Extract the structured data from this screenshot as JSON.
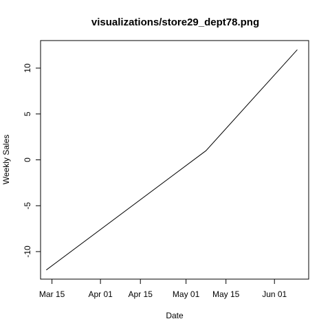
{
  "chart_data": {
    "type": "line",
    "title": "visualizations/store29_dept78.png",
    "xlabel": "Date",
    "ylabel": "Weekly Sales",
    "x_ticks": [
      {
        "date": "2012-03-15",
        "label": "Mar 15"
      },
      {
        "date": "2012-04-01",
        "label": "Apr 01"
      },
      {
        "date": "2012-04-15",
        "label": "Apr 15"
      },
      {
        "date": "2012-05-01",
        "label": "May 01"
      },
      {
        "date": "2012-05-15",
        "label": "May 15"
      },
      {
        "date": "2012-06-01",
        "label": "Jun 01"
      }
    ],
    "y_ticks": [
      -10,
      -5,
      0,
      5,
      10
    ],
    "xlim": [
      "2012-03-11",
      "2012-06-13"
    ],
    "ylim": [
      -13,
      13
    ],
    "grid": false,
    "series": [
      {
        "color": "#000000",
        "points": [
          {
            "x": "2012-03-13",
            "y": -12.0
          },
          {
            "x": "2012-05-08",
            "y": 1.0
          },
          {
            "x": "2012-06-09",
            "y": 12.0
          }
        ]
      }
    ]
  }
}
